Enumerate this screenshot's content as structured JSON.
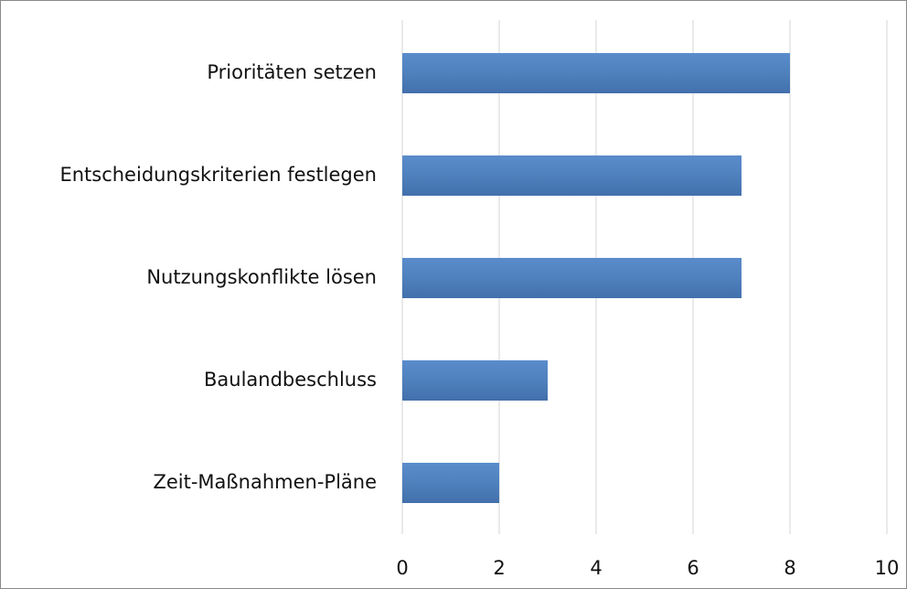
{
  "chart_data": {
    "type": "barh",
    "categories": [
      "Prioritäten setzen",
      "Entscheidungskriterien festlegen",
      "Nutzungskonflikte lösen",
      "Baulandbeschluss",
      "Zeit-Maßnahmen-Pläne"
    ],
    "values": [
      8,
      7,
      7,
      3,
      2
    ],
    "color": "#4f81bd",
    "xlim": [
      0,
      10
    ],
    "xticks": [
      0,
      2,
      4,
      6,
      8,
      10
    ],
    "grid": true
  }
}
